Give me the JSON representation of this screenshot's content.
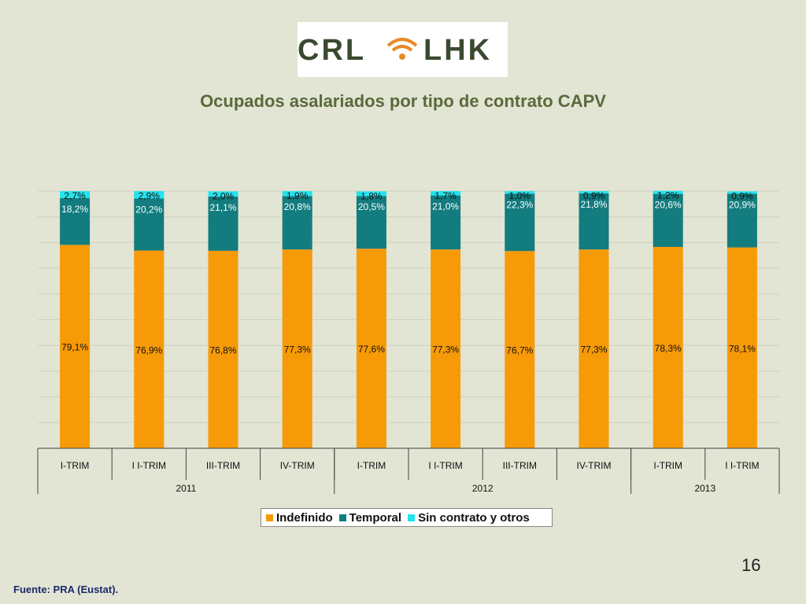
{
  "logo": {
    "left_text": "CRL",
    "right_text": "LHK"
  },
  "page_number": "16",
  "source": "Fuente: PRA (Eustat).",
  "chart_data": {
    "type": "bar",
    "stacked": true,
    "title": "Ocupados asalariados por tipo de contrato CAPV",
    "categories": [
      "I-TRIM",
      "I I-TRIM",
      "III-TRIM",
      "IV-TRIM",
      "I-TRIM",
      "I I-TRIM",
      "III-TRIM",
      "IV-TRIM",
      "I-TRIM",
      "I I-TRIM"
    ],
    "groups": [
      {
        "label": "2011",
        "count": 4
      },
      {
        "label": "2012",
        "count": 4
      },
      {
        "label": "2013",
        "count": 2
      }
    ],
    "series": [
      {
        "name": "Indefinido",
        "color": "#f79a08",
        "values": [
          79.1,
          76.9,
          76.8,
          77.3,
          77.6,
          77.3,
          76.7,
          77.3,
          78.3,
          78.1
        ],
        "labels": [
          "79,1%",
          "76,9%",
          "76,8%",
          "77,3%",
          "77,6%",
          "77,3%",
          "76,7%",
          "77,3%",
          "78,3%",
          "78,1%"
        ]
      },
      {
        "name": "Temporal",
        "color": "#127c7e",
        "values": [
          18.2,
          20.2,
          21.1,
          20.8,
          20.5,
          21.0,
          22.3,
          21.8,
          20.6,
          20.9
        ],
        "labels": [
          "18,2%",
          "20,2%",
          "21,1%",
          "20,8%",
          "20,5%",
          "21,0%",
          "22,3%",
          "21,8%",
          "20,6%",
          "20,9%"
        ]
      },
      {
        "name": "Sin contrato y otros",
        "color": "#22e4ee",
        "values": [
          2.7,
          2.9,
          2.0,
          1.9,
          1.8,
          1.7,
          1.0,
          0.9,
          1.2,
          0.9
        ],
        "labels": [
          "2,7%",
          "2,9%",
          "2,0%",
          "1,9%",
          "1,8%",
          "1,7%",
          "1,0%",
          "0,9%",
          "1,2%",
          "0,9%"
        ]
      }
    ],
    "ylim": [
      0,
      100
    ],
    "grid": true,
    "legend_position": "bottom"
  }
}
